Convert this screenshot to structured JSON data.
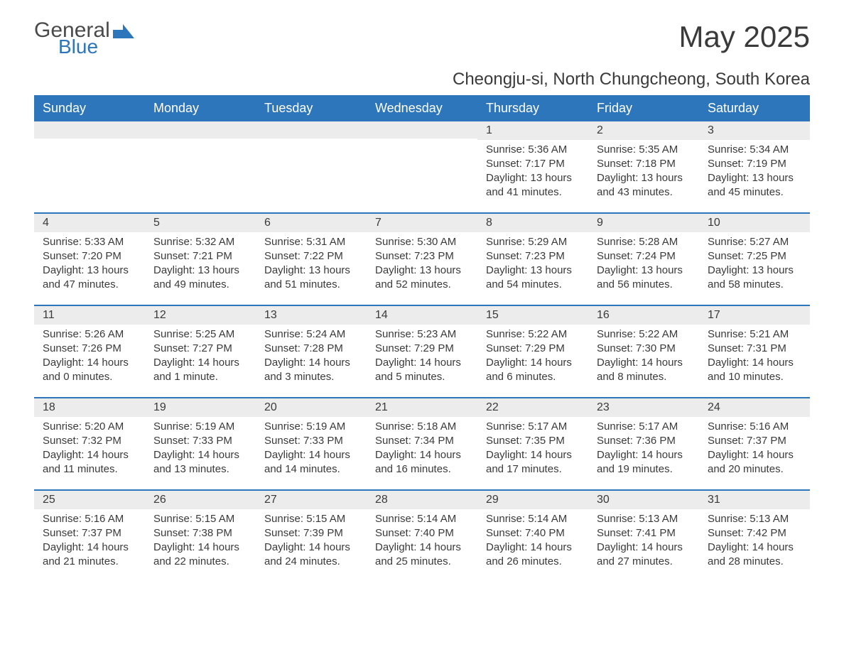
{
  "logo": {
    "text1": "General",
    "text2": "Blue",
    "accent_color": "#2d76bb"
  },
  "title": "May 2025",
  "subtitle": "Cheongju-si, North Chungcheong, South Korea",
  "colors": {
    "header_bg": "#2d76bb",
    "header_fg": "#ffffff",
    "daynum_bg": "#ececec",
    "text": "#3a3a3a",
    "divider": "#2d76bb",
    "page_bg": "#ffffff"
  },
  "days_of_week": [
    "Sunday",
    "Monday",
    "Tuesday",
    "Wednesday",
    "Thursday",
    "Friday",
    "Saturday"
  ],
  "weeks": [
    [
      {
        "empty": true
      },
      {
        "empty": true
      },
      {
        "empty": true
      },
      {
        "empty": true
      },
      {
        "n": "1",
        "sunrise": "5:36 AM",
        "sunset": "7:17 PM",
        "daylight": "13 hours and 41 minutes."
      },
      {
        "n": "2",
        "sunrise": "5:35 AM",
        "sunset": "7:18 PM",
        "daylight": "13 hours and 43 minutes."
      },
      {
        "n": "3",
        "sunrise": "5:34 AM",
        "sunset": "7:19 PM",
        "daylight": "13 hours and 45 minutes."
      }
    ],
    [
      {
        "n": "4",
        "sunrise": "5:33 AM",
        "sunset": "7:20 PM",
        "daylight": "13 hours and 47 minutes."
      },
      {
        "n": "5",
        "sunrise": "5:32 AM",
        "sunset": "7:21 PM",
        "daylight": "13 hours and 49 minutes."
      },
      {
        "n": "6",
        "sunrise": "5:31 AM",
        "sunset": "7:22 PM",
        "daylight": "13 hours and 51 minutes."
      },
      {
        "n": "7",
        "sunrise": "5:30 AM",
        "sunset": "7:23 PM",
        "daylight": "13 hours and 52 minutes."
      },
      {
        "n": "8",
        "sunrise": "5:29 AM",
        "sunset": "7:23 PM",
        "daylight": "13 hours and 54 minutes."
      },
      {
        "n": "9",
        "sunrise": "5:28 AM",
        "sunset": "7:24 PM",
        "daylight": "13 hours and 56 minutes."
      },
      {
        "n": "10",
        "sunrise": "5:27 AM",
        "sunset": "7:25 PM",
        "daylight": "13 hours and 58 minutes."
      }
    ],
    [
      {
        "n": "11",
        "sunrise": "5:26 AM",
        "sunset": "7:26 PM",
        "daylight": "14 hours and 0 minutes."
      },
      {
        "n": "12",
        "sunrise": "5:25 AM",
        "sunset": "7:27 PM",
        "daylight": "14 hours and 1 minute."
      },
      {
        "n": "13",
        "sunrise": "5:24 AM",
        "sunset": "7:28 PM",
        "daylight": "14 hours and 3 minutes."
      },
      {
        "n": "14",
        "sunrise": "5:23 AM",
        "sunset": "7:29 PM",
        "daylight": "14 hours and 5 minutes."
      },
      {
        "n": "15",
        "sunrise": "5:22 AM",
        "sunset": "7:29 PM",
        "daylight": "14 hours and 6 minutes."
      },
      {
        "n": "16",
        "sunrise": "5:22 AM",
        "sunset": "7:30 PM",
        "daylight": "14 hours and 8 minutes."
      },
      {
        "n": "17",
        "sunrise": "5:21 AM",
        "sunset": "7:31 PM",
        "daylight": "14 hours and 10 minutes."
      }
    ],
    [
      {
        "n": "18",
        "sunrise": "5:20 AM",
        "sunset": "7:32 PM",
        "daylight": "14 hours and 11 minutes."
      },
      {
        "n": "19",
        "sunrise": "5:19 AM",
        "sunset": "7:33 PM",
        "daylight": "14 hours and 13 minutes."
      },
      {
        "n": "20",
        "sunrise": "5:19 AM",
        "sunset": "7:33 PM",
        "daylight": "14 hours and 14 minutes."
      },
      {
        "n": "21",
        "sunrise": "5:18 AM",
        "sunset": "7:34 PM",
        "daylight": "14 hours and 16 minutes."
      },
      {
        "n": "22",
        "sunrise": "5:17 AM",
        "sunset": "7:35 PM",
        "daylight": "14 hours and 17 minutes."
      },
      {
        "n": "23",
        "sunrise": "5:17 AM",
        "sunset": "7:36 PM",
        "daylight": "14 hours and 19 minutes."
      },
      {
        "n": "24",
        "sunrise": "5:16 AM",
        "sunset": "7:37 PM",
        "daylight": "14 hours and 20 minutes."
      }
    ],
    [
      {
        "n": "25",
        "sunrise": "5:16 AM",
        "sunset": "7:37 PM",
        "daylight": "14 hours and 21 minutes."
      },
      {
        "n": "26",
        "sunrise": "5:15 AM",
        "sunset": "7:38 PM",
        "daylight": "14 hours and 22 minutes."
      },
      {
        "n": "27",
        "sunrise": "5:15 AM",
        "sunset": "7:39 PM",
        "daylight": "14 hours and 24 minutes."
      },
      {
        "n": "28",
        "sunrise": "5:14 AM",
        "sunset": "7:40 PM",
        "daylight": "14 hours and 25 minutes."
      },
      {
        "n": "29",
        "sunrise": "5:14 AM",
        "sunset": "7:40 PM",
        "daylight": "14 hours and 26 minutes."
      },
      {
        "n": "30",
        "sunrise": "5:13 AM",
        "sunset": "7:41 PM",
        "daylight": "14 hours and 27 minutes."
      },
      {
        "n": "31",
        "sunrise": "5:13 AM",
        "sunset": "7:42 PM",
        "daylight": "14 hours and 28 minutes."
      }
    ]
  ],
  "labels": {
    "sunrise": "Sunrise: ",
    "sunset": "Sunset: ",
    "daylight": "Daylight: "
  }
}
